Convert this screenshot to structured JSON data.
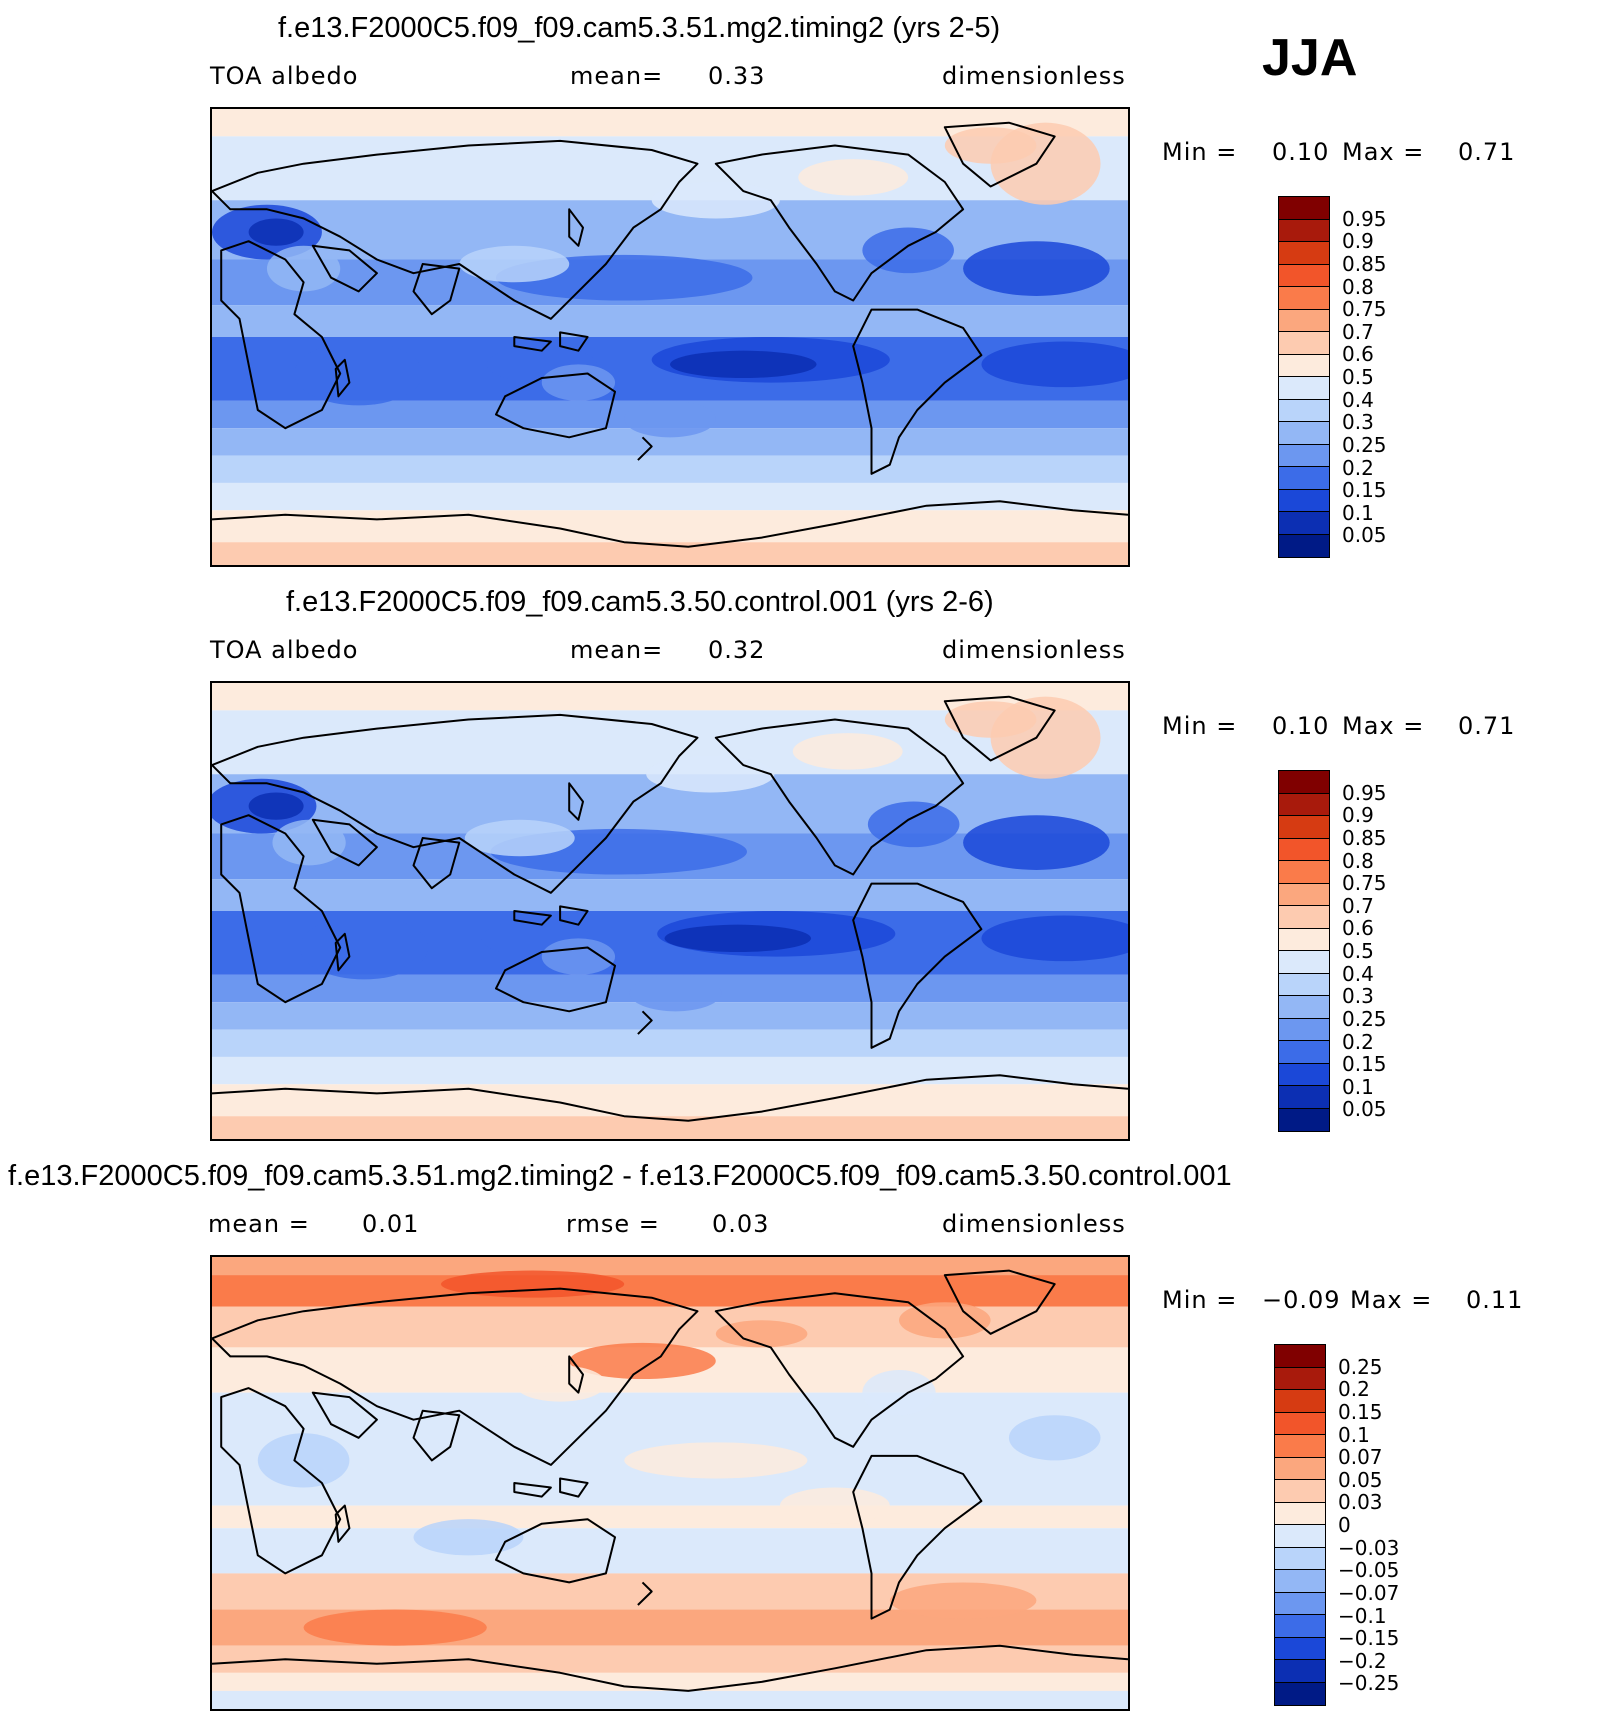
{
  "season": "JJA",
  "panels": [
    {
      "id": "test",
      "title": "f.e13.F2000C5.f09_f09.cam5.3.51.mg2.timing2 (yrs 2-5)",
      "left": "TOA albedo",
      "mid_label": "mean=",
      "mid_value": "0.33",
      "units": "dimensionless",
      "min_label": "Min =",
      "min_value": "0.10",
      "max_label": "Max =",
      "max_value": "0.71",
      "field": "abs"
    },
    {
      "id": "control",
      "title": "f.e13.F2000C5.f09_f09.cam5.3.50.control.001 (yrs 2-6)",
      "left": "TOA albedo",
      "mid_label": "mean=",
      "mid_value": "0.32",
      "units": "dimensionless",
      "min_label": "Min =",
      "min_value": "0.10",
      "max_label": "Max =",
      "max_value": "0.71",
      "field": "abs"
    },
    {
      "id": "diff",
      "title": "f.e13.F2000C5.f09_f09.cam5.3.51.mg2.timing2 - f.e13.F2000C5.f09_f09.cam5.3.50.control.001",
      "left_label": "mean =",
      "left_value": "0.01",
      "mid_label": "rmse =",
      "mid_value": "0.03",
      "units": "dimensionless",
      "min_label": "Min =",
      "min_value": "−0.09",
      "max_label": "Max =",
      "max_value": "0.11",
      "field": "diff"
    }
  ],
  "colorbars": {
    "abs": {
      "labels": [
        "0.95",
        "0.9",
        "0.85",
        "0.8",
        "0.75",
        "0.7",
        "0.6",
        "0.5",
        "0.4",
        "0.3",
        "0.25",
        "0.2",
        "0.15",
        "0.1",
        "0.05"
      ],
      "colors": [
        "#800000",
        "#a81a0c",
        "#d63b12",
        "#f2552a",
        "#fa7b4a",
        "#fba77e",
        "#fdcbb0",
        "#fdebdd",
        "#dbe9fb",
        "#b9d4fa",
        "#93b7f5",
        "#6c97f0",
        "#3c6ce8",
        "#1b48d8",
        "#0c2fb3",
        "#001a86"
      ]
    },
    "diff": {
      "labels": [
        "0.25",
        "0.2",
        "0.15",
        "0.1",
        "0.07",
        "0.05",
        "0.03",
        "0",
        "−0.03",
        "−0.05",
        "−0.07",
        "−0.1",
        "−0.15",
        "−0.2",
        "−0.25"
      ],
      "colors": [
        "#800000",
        "#a81a0c",
        "#d63b12",
        "#f2552a",
        "#fa7b4a",
        "#fba77e",
        "#fdcbb0",
        "#fdebdd",
        "#dbe9fb",
        "#b9d4fa",
        "#93b7f5",
        "#6c97f0",
        "#3c6ce8",
        "#1b48d8",
        "#0c2fb3",
        "#001a86"
      ]
    }
  }
}
